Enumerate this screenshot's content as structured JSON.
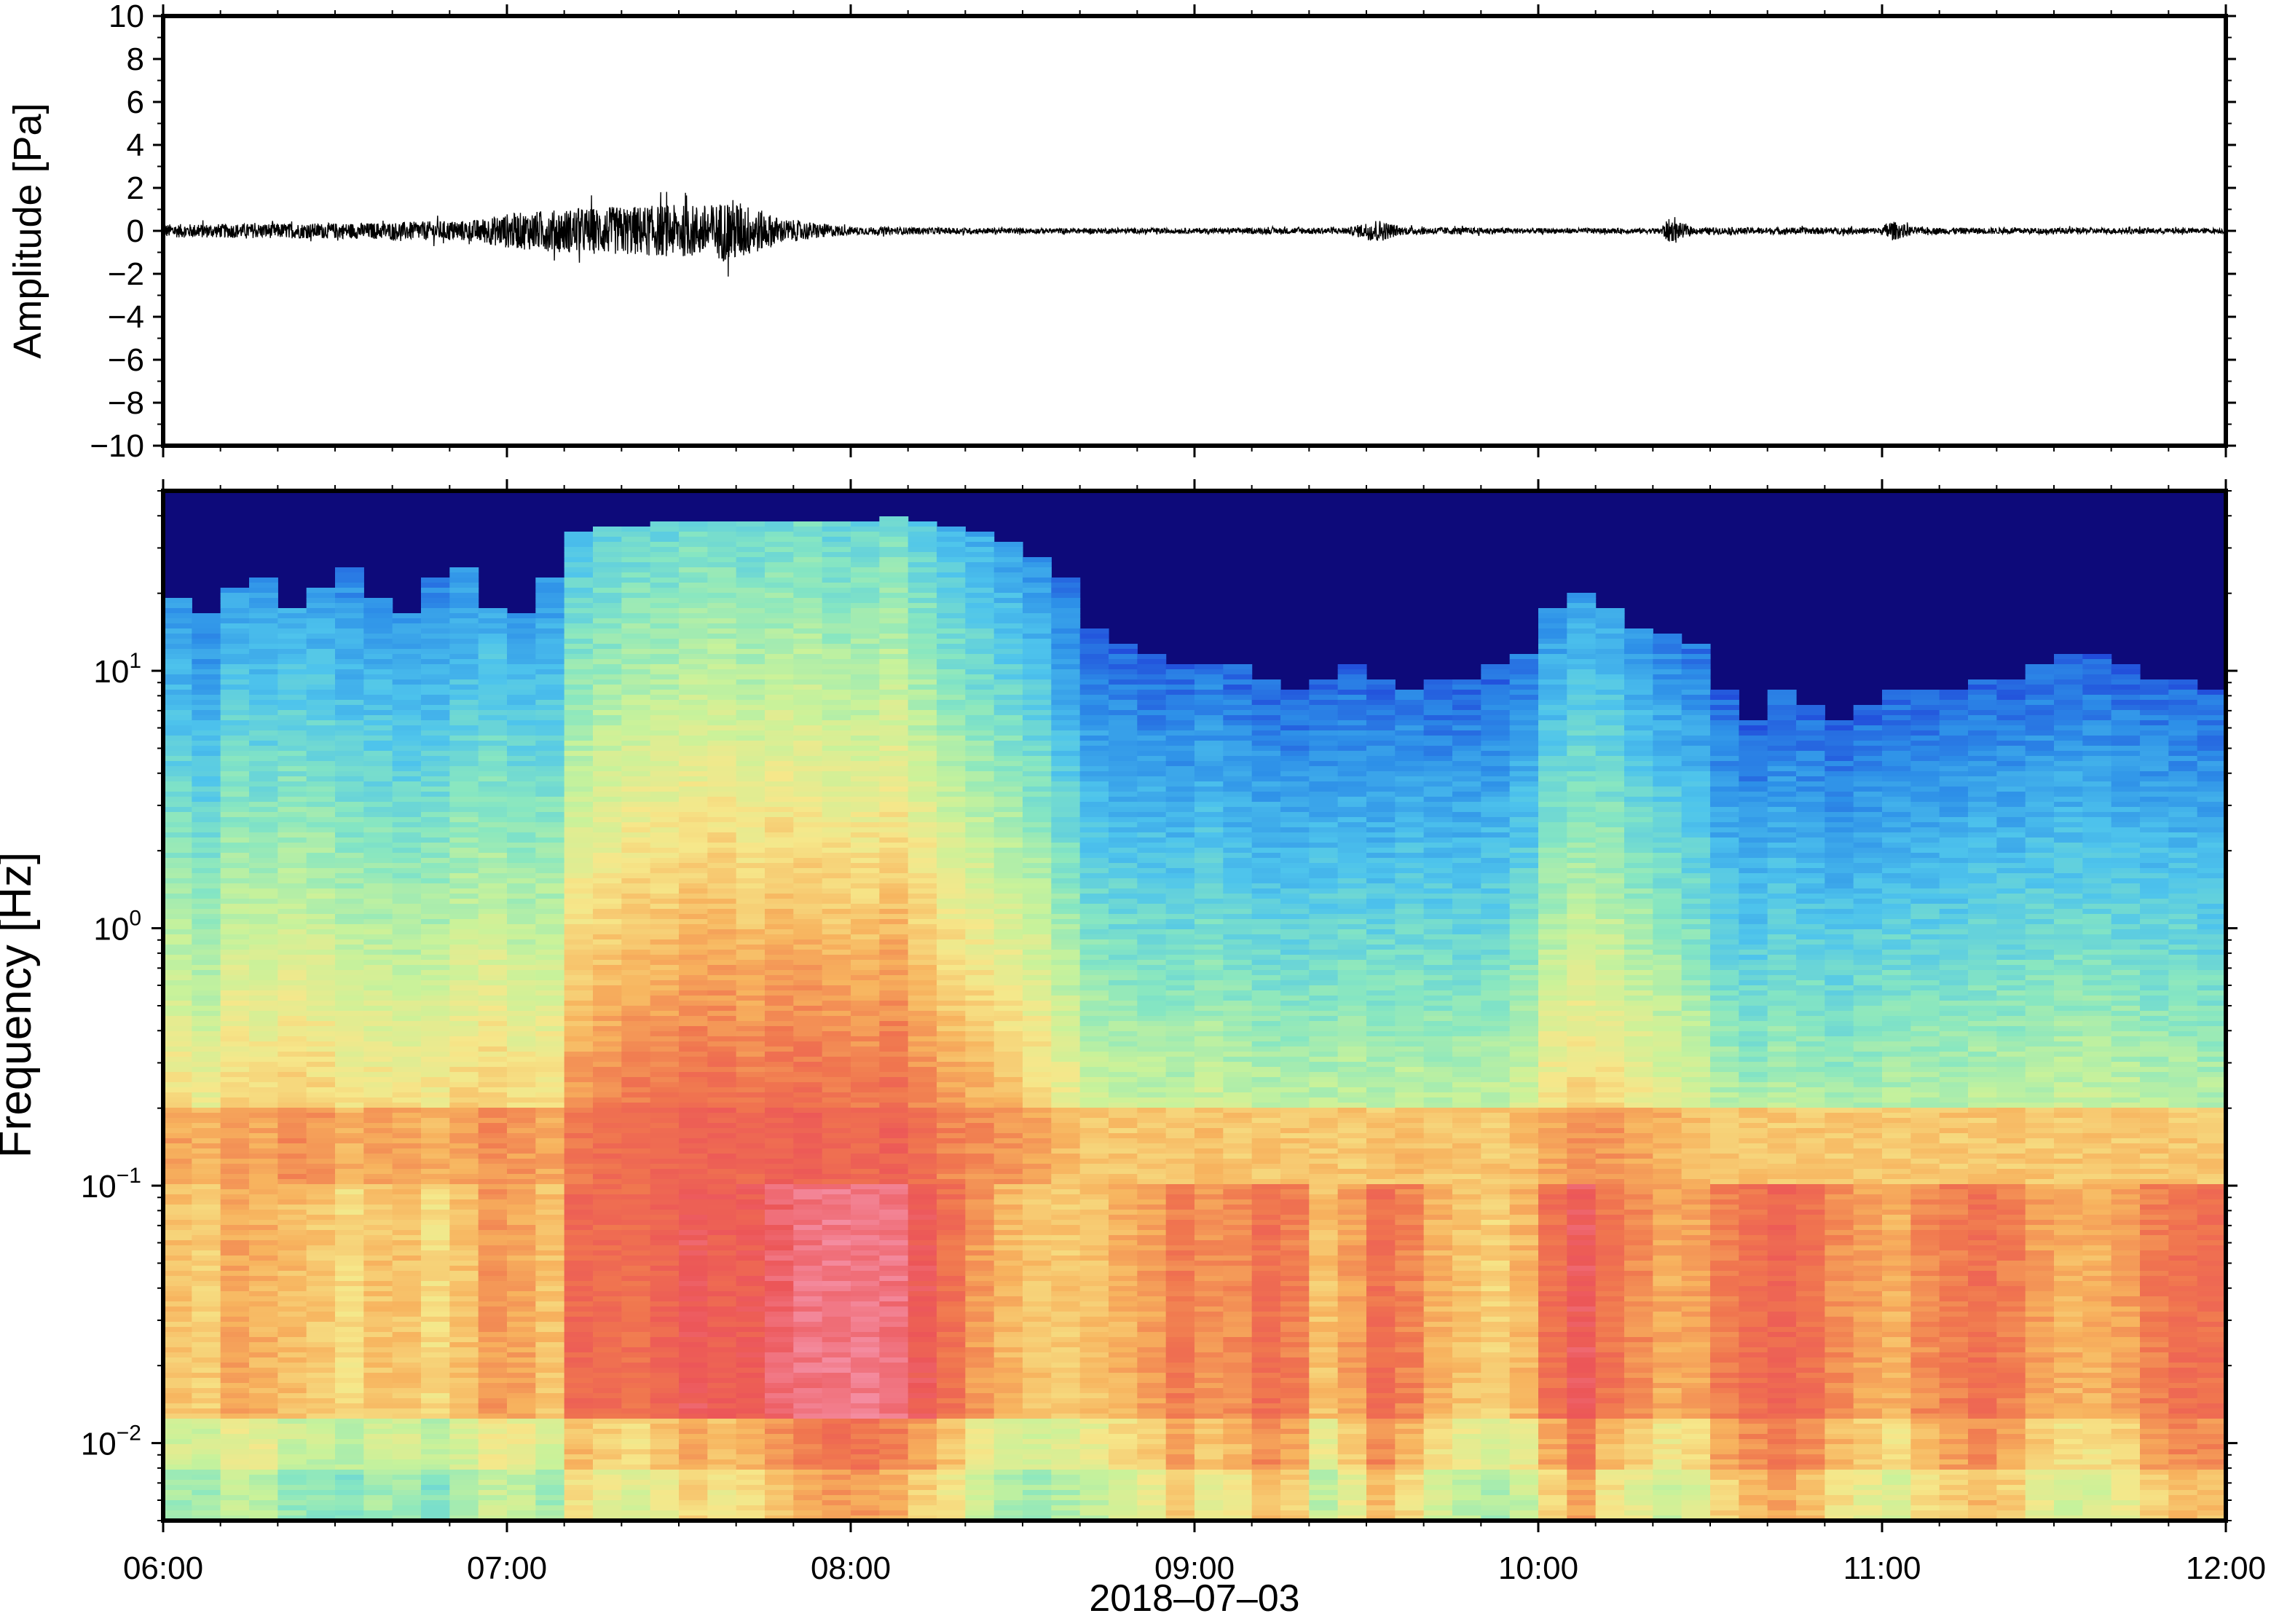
{
  "chart_data": [
    {
      "type": "line",
      "ylabel": "Amplitude [Pa]",
      "ylim": [
        -10,
        10
      ],
      "yticks": [
        10,
        8,
        6,
        4,
        2,
        0,
        -2,
        -4,
        -6,
        -8,
        -10
      ],
      "ytick_labels": [
        "10",
        "8",
        "6",
        "4",
        "2",
        "0",
        "−2",
        "−4",
        "−6",
        "−8",
        "−10"
      ],
      "x_range_hours": [
        6,
        12
      ],
      "envelope": {
        "x_hours": [
          6.0,
          6.3,
          6.6,
          6.9,
          7.0,
          7.2,
          7.4,
          7.6,
          7.65,
          7.8,
          8.0,
          8.5,
          9.0,
          9.45,
          9.53,
          9.6,
          10.0,
          10.35,
          10.38,
          10.45,
          11.0,
          11.02,
          11.1,
          12.0
        ],
        "amplitude_pa": [
          0.5,
          0.55,
          0.6,
          0.8,
          1.3,
          1.7,
          1.9,
          2.0,
          2.5,
          0.9,
          0.3,
          0.2,
          0.2,
          0.25,
          0.9,
          0.3,
          0.2,
          0.2,
          0.9,
          0.25,
          0.25,
          0.8,
          0.25,
          0.2
        ]
      }
    },
    {
      "type": "heatmap",
      "ylabel": "Frequency [Hz]",
      "xlabel": "2018–07–03",
      "y_scale": "log",
      "ylim_hz": [
        0.005,
        50
      ],
      "yticks": [
        {
          "base": "10",
          "exp": "1",
          "value": 10
        },
        {
          "base": "10",
          "exp": "0",
          "value": 1
        },
        {
          "base": "10",
          "exp": "−1",
          "value": 0.1
        },
        {
          "base": "10",
          "exp": "−2",
          "value": 0.01
        }
      ],
      "xticks": [
        "06:00",
        "07:00",
        "08:00",
        "09:00",
        "10:00",
        "11:00",
        "12:00"
      ],
      "colormap": [
        "#0d0a7a",
        "#1f3fd8",
        "#2d8fe8",
        "#4ec4ec",
        "#86e6c2",
        "#c9f29a",
        "#f6e78a",
        "#f7b35e",
        "#f0764f",
        "#ec5658",
        "#f48ca0"
      ],
      "time_columns": 72,
      "noise_ceiling_hz": [
        18,
        16,
        20,
        22,
        17,
        20,
        24,
        18,
        16,
        22,
        24,
        17,
        16,
        22,
        33,
        34,
        35,
        36,
        36,
        37,
        37,
        37,
        37,
        37,
        37,
        38,
        36,
        35,
        33,
        30,
        26,
        22,
        14,
        12,
        11,
        10,
        10,
        10,
        9,
        8,
        9,
        10,
        9,
        8,
        9,
        9,
        10,
        11,
        17,
        19,
        17,
        14,
        13,
        12,
        8,
        6,
        8,
        7,
        6,
        7,
        8,
        8,
        8,
        9,
        9,
        10,
        11,
        11,
        10,
        9,
        9,
        8
      ],
      "energy_boost": [
        0.3,
        0.2,
        0.4,
        0.3,
        0.5,
        0.4,
        0.2,
        0.3,
        0.3,
        0.2,
        0.3,
        0.5,
        0.4,
        0.3,
        0.7,
        0.8,
        0.9,
        0.9,
        1.0,
        1.0,
        0.9,
        1.0,
        1.0,
        0.9,
        0.9,
        1.0,
        0.8,
        0.6,
        0.5,
        0.4,
        0.3,
        0.1,
        0.0,
        0.0,
        0.0,
        0.0,
        0.1,
        0.0,
        0.0,
        0.0,
        0.0,
        0.0,
        0.0,
        0.1,
        0.0,
        0.0,
        0.0,
        0.1,
        0.3,
        0.4,
        0.4,
        0.3,
        0.2,
        0.1,
        0.0,
        0.0,
        0.0,
        0.0,
        0.0,
        0.0,
        0.0,
        0.0,
        0.0,
        0.0,
        0.0,
        0.0,
        0.0,
        0.0,
        0.0,
        0.0,
        0.0,
        0.0
      ],
      "low_band_level": [
        0.2,
        0.2,
        0.3,
        0.3,
        0.1,
        0.1,
        0.1,
        0.2,
        0.2,
        0.1,
        0.2,
        0.3,
        0.3,
        0.2,
        0.5,
        0.4,
        0.3,
        0.4,
        0.5,
        0.4,
        0.5,
        0.6,
        0.7,
        0.8,
        0.8,
        0.7,
        0.6,
        0.5,
        0.3,
        0.2,
        0.2,
        0.3,
        0.4,
        0.5,
        0.6,
        0.8,
        0.6,
        0.7,
        0.9,
        0.8,
        0.4,
        0.6,
        0.9,
        0.7,
        0.5,
        0.4,
        0.3,
        0.4,
        0.7,
        0.9,
        0.6,
        0.5,
        0.4,
        0.5,
        0.8,
        0.9,
        1.0,
        0.9,
        0.7,
        0.6,
        0.5,
        0.7,
        0.8,
        0.9,
        0.8,
        0.6,
        0.5,
        0.5,
        0.6,
        0.8,
        0.9,
        0.9
      ]
    }
  ]
}
